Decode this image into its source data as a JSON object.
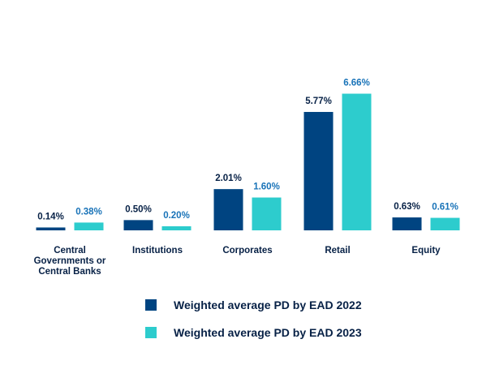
{
  "chart_data": {
    "type": "bar",
    "categories": [
      [
        "Central",
        "Governments or",
        "Central Banks"
      ],
      [
        "Institutions"
      ],
      [
        "Corporates"
      ],
      [
        "Retail"
      ],
      [
        "Equity"
      ]
    ],
    "series": [
      {
        "name": "Weighted average PD by EAD 2022",
        "color": "#004481",
        "label_color": "#072146",
        "values": [
          0.14,
          0.5,
          2.01,
          5.77,
          0.63
        ],
        "labels": [
          "0.14%",
          "0.50%",
          "2.01%",
          "5.77%",
          "0.63%"
        ]
      },
      {
        "name": "Weighted average PD by EAD 2023",
        "color": "#2dcccd",
        "label_color": "#1973b8",
        "values": [
          0.38,
          0.2,
          1.6,
          6.66,
          0.61
        ],
        "labels": [
          "0.38%",
          "0.20%",
          "1.60%",
          "6.66%",
          "0.61%"
        ]
      }
    ],
    "ylim": [
      0,
      6.66
    ],
    "grid": false,
    "legend_position": "bottom"
  }
}
